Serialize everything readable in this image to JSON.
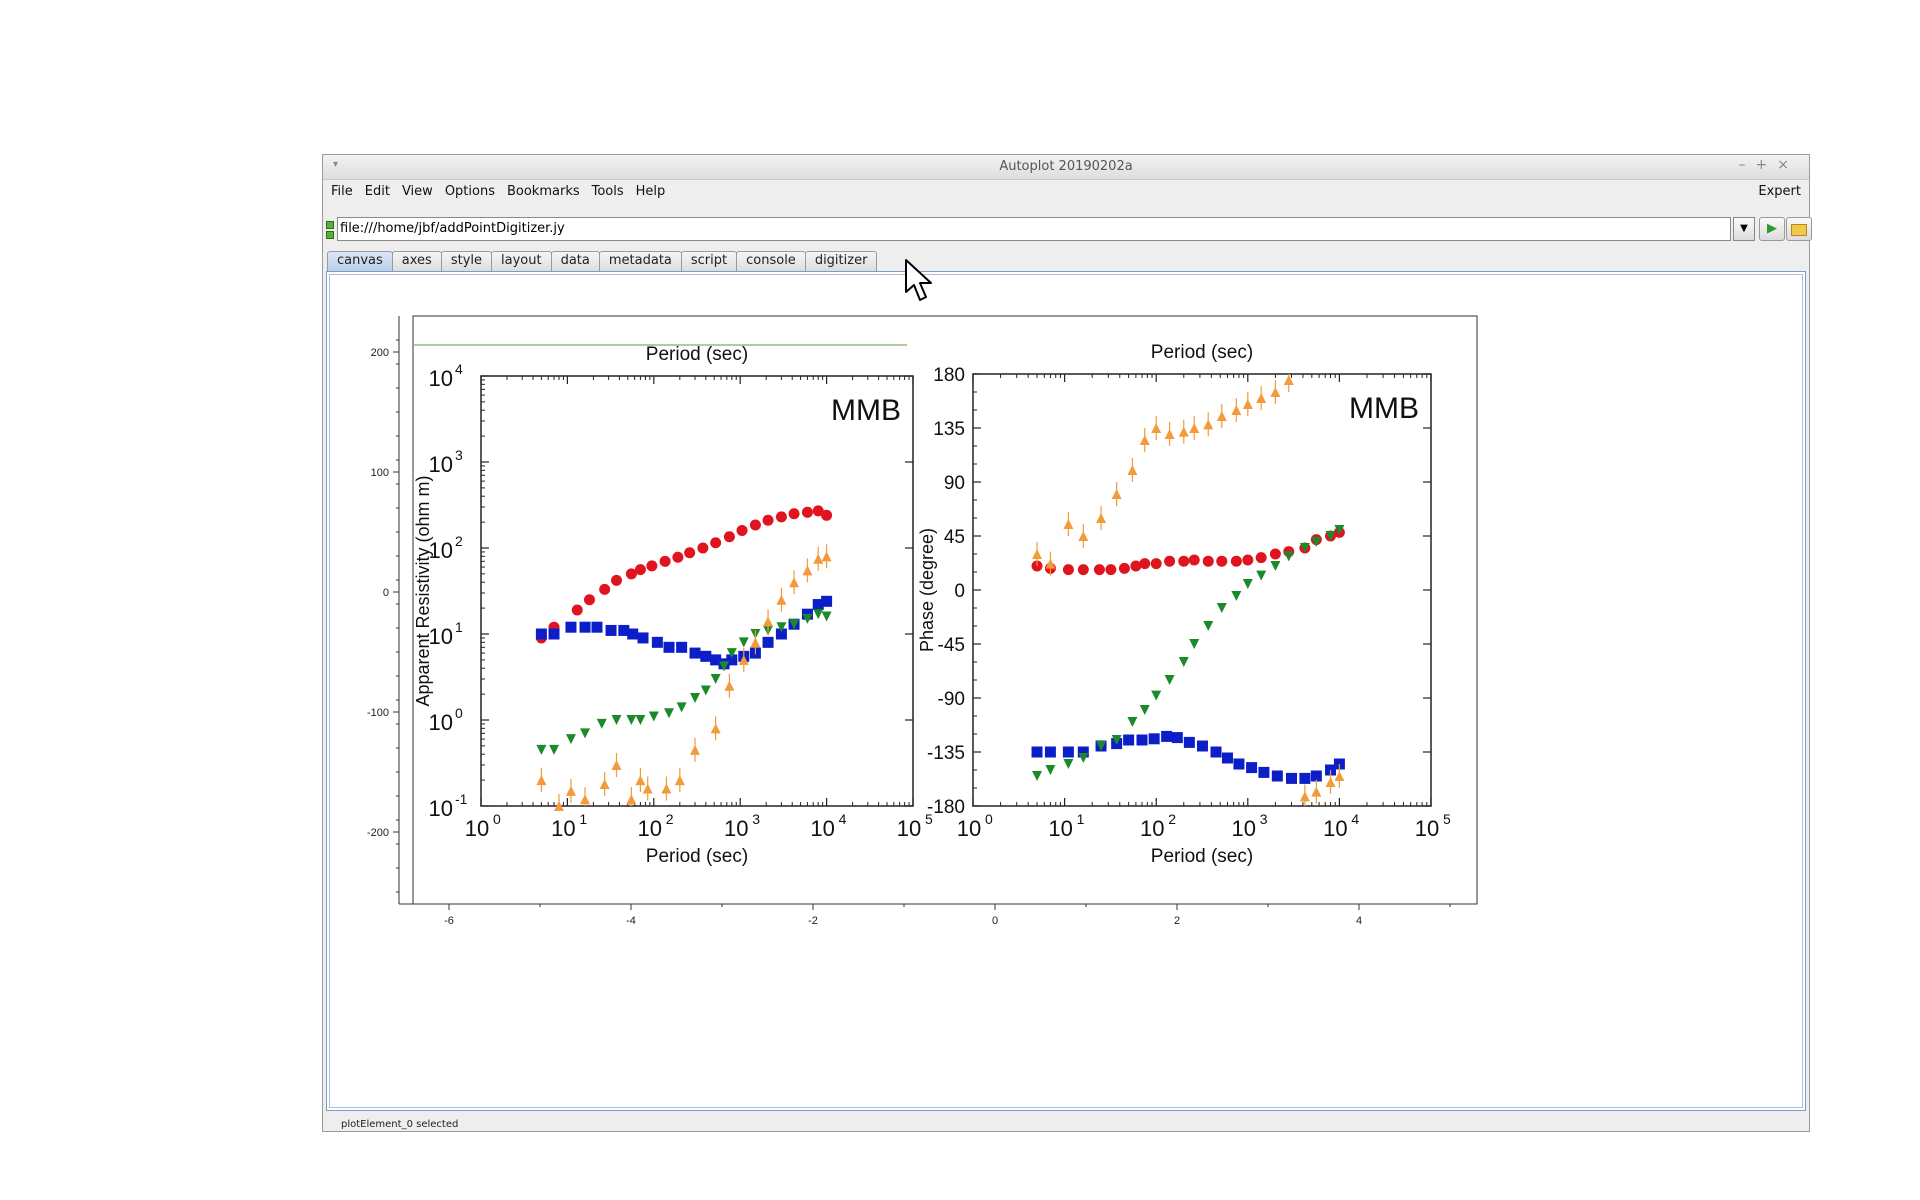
{
  "window": {
    "title": "Autoplot 20190202a"
  },
  "menu": {
    "items": [
      "File",
      "Edit",
      "View",
      "Options",
      "Bookmarks",
      "Tools",
      "Help"
    ],
    "expert": "Expert"
  },
  "url": {
    "value": "file:///home/jbf/addPointDigitizer.jy"
  },
  "tabs": [
    "canvas",
    "axes",
    "style",
    "layout",
    "data",
    "metadata",
    "script",
    "console",
    "digitizer"
  ],
  "active_tab": "canvas",
  "status": "plotElement_0 selected",
  "outer_axes": {
    "y_ticks": [
      "200",
      "100",
      "0",
      "-100",
      "-200"
    ],
    "x_ticks": [
      "-6",
      "-4",
      "-2",
      "0",
      "2",
      "4"
    ]
  },
  "image_text": {
    "top_label_left": "Period (sec)",
    "top_label_right": "Period (sec)",
    "left_ylabel": "Apparent Resistivity (ohm m)",
    "right_ylabel": "Phase (degree)",
    "xlabel": "Period (sec)",
    "station": "MMB",
    "left_y_ticks": [
      "10",
      "10",
      "10",
      "10",
      "10",
      "10"
    ],
    "left_y_exps": [
      "4",
      "3",
      "2",
      "1",
      "0",
      "-1"
    ],
    "x_tick_base": "10",
    "x_tick_exps": [
      "0",
      "1",
      "2",
      "3",
      "4",
      "5"
    ],
    "right_y_ticks": [
      "180",
      "135",
      "90",
      "45",
      "0",
      "-45",
      "-90",
      "-135",
      "-180"
    ]
  },
  "colors": {
    "red": "#e0141e",
    "blue": "#0c1ec8",
    "green": "#1c8a28",
    "orange": "#f39a3a"
  },
  "chart_data": [
    {
      "type": "scatter",
      "xlabel": "Period (sec)",
      "ylabel": "Apparent Resistivity (ohm m)",
      "x_scale": "log",
      "y_scale": "log",
      "xlim": [
        1,
        100000
      ],
      "ylim": [
        0.1,
        10000
      ],
      "series": [
        {
          "color": "red",
          "x": [
            5,
            7,
            13,
            18,
            27,
            37,
            55,
            70,
            95,
            135,
            190,
            260,
            370,
            520,
            750,
            1050,
            1500,
            2100,
            3000,
            4200,
            6000,
            8000,
            10000
          ],
          "y": [
            9,
            12,
            19,
            25,
            33,
            42,
            50,
            56,
            62,
            70,
            78,
            88,
            100,
            115,
            135,
            160,
            185,
            210,
            230,
            250,
            260,
            270,
            240
          ]
        },
        {
          "color": "blue",
          "x": [
            5,
            7,
            11,
            16,
            22,
            32,
            45,
            57,
            75,
            110,
            150,
            210,
            300,
            400,
            520,
            650,
            800,
            1100,
            1500,
            2100,
            3000,
            4200,
            6000,
            8000,
            10000
          ],
          "y": [
            10,
            10,
            12,
            12,
            12,
            11,
            11,
            10,
            9,
            8,
            7,
            7,
            6,
            5.5,
            5,
            4.5,
            5,
            5.5,
            6,
            8,
            10,
            13,
            17,
            22,
            24
          ]
        },
        {
          "color": "green",
          "x": [
            5,
            7,
            11,
            16,
            25,
            37,
            55,
            70,
            100,
            150,
            210,
            300,
            400,
            520,
            650,
            800,
            1100,
            1500,
            2100,
            3000,
            4200,
            6000,
            8000,
            10000
          ],
          "y": [
            0.45,
            0.45,
            0.6,
            0.7,
            0.9,
            1.0,
            1.0,
            1.0,
            1.1,
            1.2,
            1.4,
            1.8,
            2.2,
            3.0,
            4.2,
            6,
            8,
            10,
            11,
            12,
            13,
            15,
            17,
            16
          ]
        },
        {
          "color": "orange",
          "x": [
            5,
            8,
            11,
            16,
            27,
            37,
            55,
            70,
            85,
            140,
            200,
            300,
            520,
            750,
            1100,
            1500,
            2100,
            3000,
            4200,
            6000,
            8000,
            10000
          ],
          "y": [
            0.2,
            0.1,
            0.15,
            0.12,
            0.18,
            0.3,
            0.12,
            0.2,
            0.16,
            0.16,
            0.2,
            0.45,
            0.8,
            2.5,
            5,
            8,
            14,
            25,
            40,
            55,
            75,
            80
          ]
        }
      ]
    },
    {
      "type": "scatter",
      "xlabel": "Period (sec)",
      "ylabel": "Phase (degree)",
      "x_scale": "log",
      "xlim": [
        1,
        100000
      ],
      "ylim": [
        -180,
        180
      ],
      "series": [
        {
          "color": "red",
          "x": [
            5,
            7,
            11,
            16,
            24,
            32,
            45,
            60,
            75,
            100,
            140,
            200,
            260,
            370,
            520,
            750,
            1000,
            1400,
            2000,
            2800,
            4200,
            5600,
            8000,
            10000
          ],
          "y": [
            20,
            18,
            17,
            17,
            17,
            17,
            18,
            20,
            22,
            22,
            24,
            24,
            25,
            24,
            24,
            24,
            25,
            27,
            30,
            32,
            35,
            42,
            45,
            48
          ]
        },
        {
          "color": "blue",
          "x": [
            5,
            7,
            11,
            16,
            25,
            37,
            50,
            70,
            95,
            130,
            170,
            230,
            320,
            450,
            600,
            800,
            1100,
            1500,
            2100,
            3000,
            4200,
            5600,
            8000,
            10000
          ],
          "y": [
            -135,
            -135,
            -135,
            -135,
            -130,
            -128,
            -125,
            -125,
            -124,
            -122,
            -123,
            -127,
            -130,
            -135,
            -140,
            -145,
            -148,
            -152,
            -155,
            -157,
            -157,
            -155,
            -150,
            -145
          ]
        },
        {
          "color": "green",
          "x": [
            5,
            7,
            11,
            16,
            25,
            37,
            55,
            75,
            100,
            140,
            200,
            260,
            370,
            520,
            750,
            1000,
            1400,
            2000,
            2800,
            4200,
            5600,
            8000,
            10000
          ],
          "y": [
            -155,
            -150,
            -145,
            -140,
            -130,
            -125,
            -110,
            -100,
            -88,
            -75,
            -60,
            -45,
            -30,
            -15,
            -5,
            5,
            12,
            20,
            28,
            35,
            40,
            45,
            50
          ]
        },
        {
          "color": "orange",
          "x": [
            5,
            7,
            11,
            16,
            25,
            37,
            55,
            75,
            100,
            140,
            200,
            260,
            370,
            520,
            750,
            1000,
            1400,
            2000,
            2800,
            4200,
            5600,
            8000,
            10000
          ],
          "y": [
            30,
            22,
            55,
            45,
            60,
            80,
            100,
            125,
            135,
            130,
            132,
            135,
            138,
            145,
            150,
            155,
            160,
            165,
            175,
            -172,
            -168,
            -160,
            -155
          ]
        }
      ]
    }
  ]
}
